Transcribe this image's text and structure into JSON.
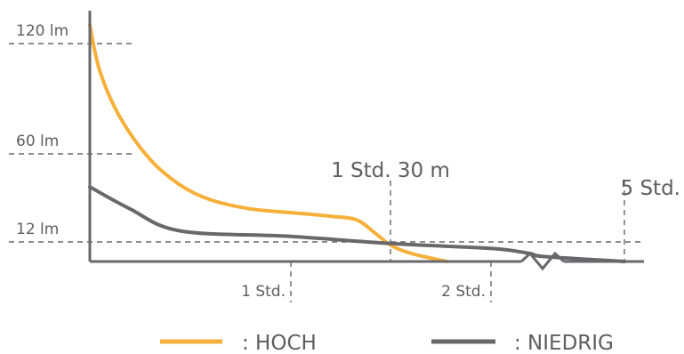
{
  "chart_data": {
    "type": "line",
    "title": "",
    "xlabel": "",
    "ylabel": "",
    "x_unit": "h",
    "xlim": [
      0,
      5.25
    ],
    "ylim": [
      0,
      130
    ],
    "y_ticks": [
      {
        "value": 120,
        "label": "120 lm"
      },
      {
        "value": 60,
        "label": "60 lm"
      },
      {
        "value": 12,
        "label": "12 lm"
      }
    ],
    "x_ticks": [
      {
        "value": 1,
        "label": "1 Std."
      },
      {
        "value": 2,
        "label": "2 Std."
      }
    ],
    "annotations": [
      {
        "x": 1.5,
        "label": "1 Std. 30 m"
      },
      {
        "x": 5.0,
        "label": "5 Std."
      }
    ],
    "axis_break": true,
    "grid": false,
    "legend_position": "bottom",
    "series": [
      {
        "name": ": HOCH",
        "color": "#f6b03a",
        "points": [
          [
            0,
            130
          ],
          [
            0.05,
            105
          ],
          [
            0.15,
            80
          ],
          [
            0.3,
            57
          ],
          [
            0.45,
            43
          ],
          [
            0.6,
            35
          ],
          [
            0.8,
            30
          ],
          [
            1.0,
            28
          ],
          [
            1.2,
            26
          ],
          [
            1.33,
            24
          ],
          [
            1.42,
            17
          ],
          [
            1.5,
            10
          ],
          [
            1.6,
            5
          ],
          [
            1.78,
            0
          ]
        ]
      },
      {
        "name": ": NIEDRIG",
        "color": "#68686c",
        "points": [
          [
            0,
            42
          ],
          [
            0.2,
            30
          ],
          [
            0.45,
            18
          ],
          [
            1.0,
            15
          ],
          [
            1.5,
            11
          ],
          [
            2.0,
            8
          ],
          [
            2.6,
            5
          ],
          [
            3.5,
            3
          ],
          [
            5.0,
            0
          ]
        ]
      }
    ]
  }
}
